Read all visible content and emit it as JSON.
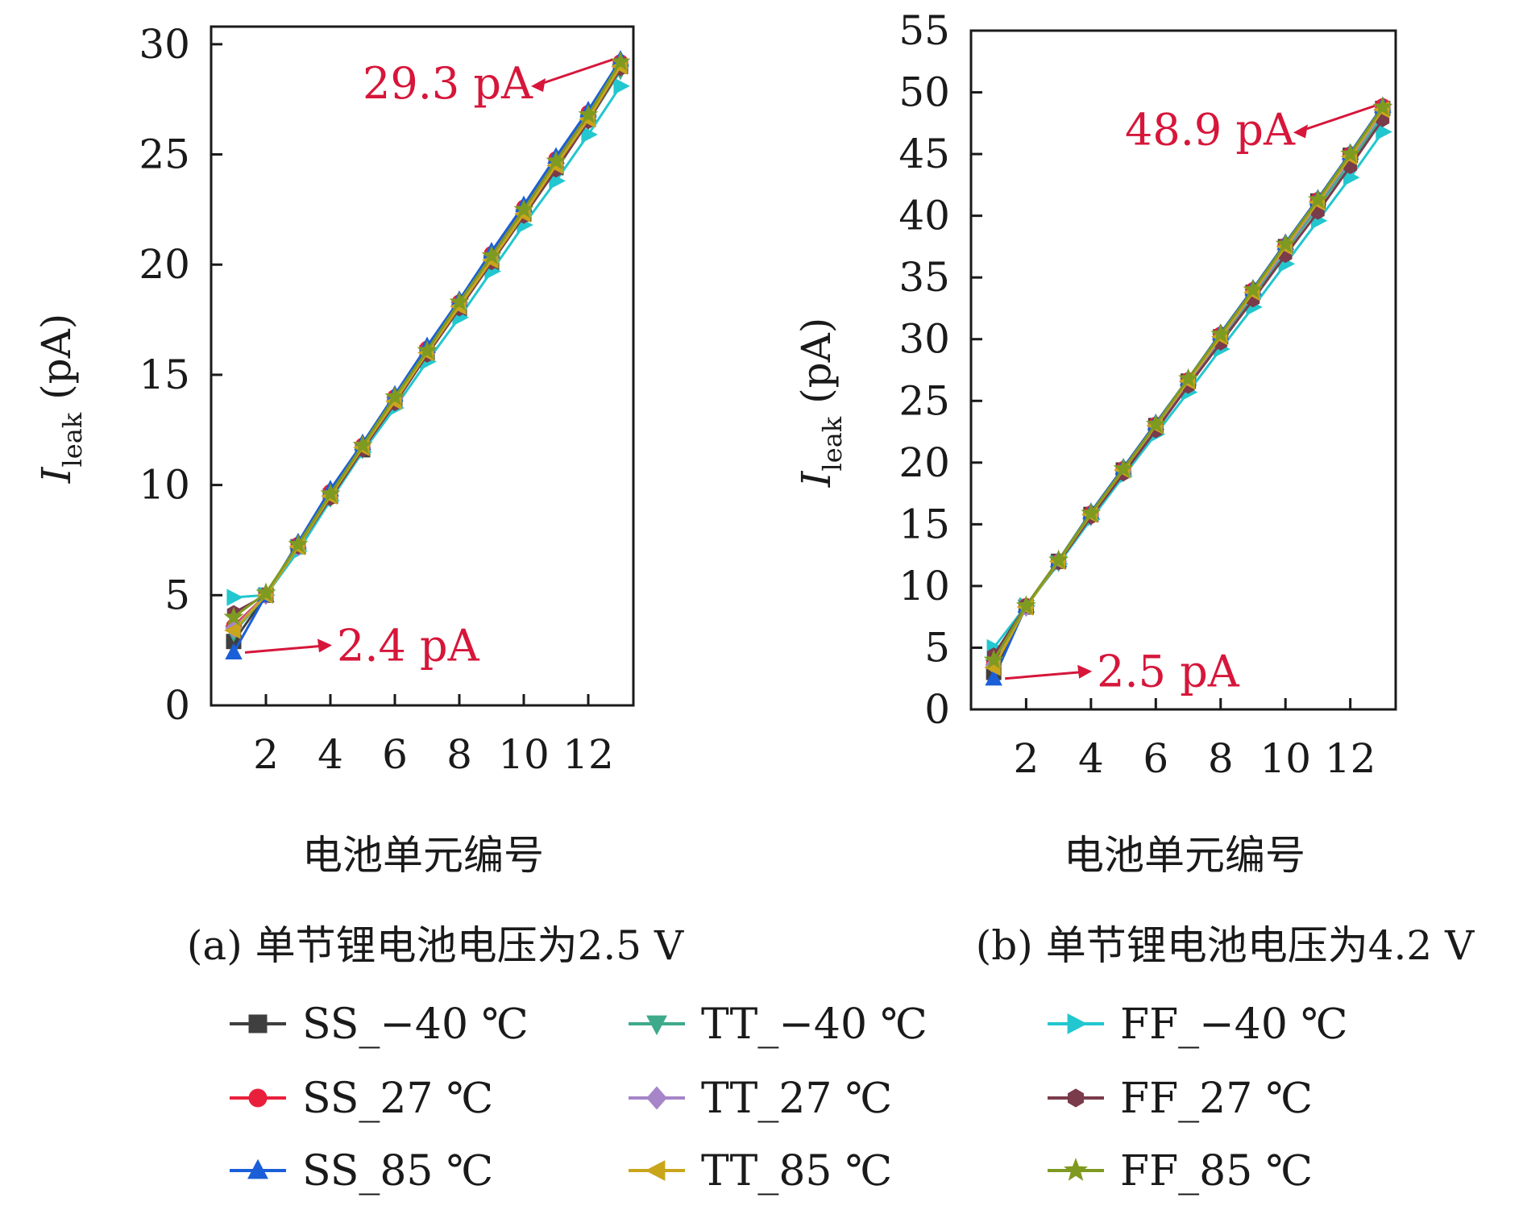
{
  "chart_data": [
    {
      "type": "line",
      "panel": "a",
      "caption": "(a) 单节锂电池电压为2.5 V",
      "xlabel": "电池单元编号",
      "ylabel_main": "I",
      "ylabel_sub": "leak",
      "ylabel_unit": " (pA)",
      "xlim": [
        0.3,
        13.4
      ],
      "ylim": [
        0,
        30.8
      ],
      "xticks": [
        2,
        4,
        6,
        8,
        10,
        12
      ],
      "yticks": [
        0,
        5,
        10,
        15,
        20,
        25,
        30
      ],
      "x": [
        1,
        2,
        3,
        4,
        5,
        6,
        7,
        8,
        9,
        10,
        11,
        12,
        13
      ],
      "series": [
        {
          "name": "SS_−40 ℃",
          "values": [
            2.9,
            5.0,
            7.2,
            9.5,
            11.6,
            13.8,
            16.0,
            18.0,
            20.1,
            22.3,
            24.4,
            26.6,
            29.0
          ]
        },
        {
          "name": "SS_27 ℃",
          "values": [
            3.3,
            5.0,
            7.2,
            9.4,
            11.6,
            13.7,
            15.9,
            18.0,
            20.1,
            22.2,
            24.3,
            26.5,
            28.8
          ]
        },
        {
          "name": "SS_85 ℃",
          "values": [
            4.9,
            5.0,
            7.0,
            9.3,
            11.5,
            13.5,
            15.6,
            17.6,
            19.7,
            21.8,
            23.8,
            25.9,
            28.1
          ]
        },
        {
          "name": "TT_−40 ℃",
          "values": [
            3.6,
            5.0,
            7.3,
            9.7,
            11.8,
            14.0,
            16.2,
            18.3,
            20.5,
            22.6,
            24.8,
            26.9,
            29.2
          ]
        },
        {
          "name": "TT_27 ℃",
          "values": [
            3.5,
            5.0,
            7.2,
            9.5,
            11.7,
            13.9,
            16.0,
            18.2,
            20.3,
            22.4,
            24.6,
            26.7,
            29.0
          ]
        },
        {
          "name": "TT_85 ℃",
          "values": [
            4.2,
            5.0,
            7.2,
            9.4,
            11.6,
            13.7,
            15.9,
            18.0,
            20.1,
            22.2,
            24.3,
            26.5,
            28.9
          ]
        },
        {
          "name": "FF_−40 ℃",
          "values": [
            2.4,
            5.0,
            7.4,
            9.8,
            11.9,
            14.1,
            16.3,
            18.4,
            20.6,
            22.7,
            24.9,
            27.0,
            29.3
          ]
        },
        {
          "name": "FF_27 ℃",
          "values": [
            3.4,
            5.0,
            7.2,
            9.5,
            11.7,
            13.8,
            16.0,
            18.1,
            20.2,
            22.3,
            24.5,
            26.6,
            29.0
          ]
        },
        {
          "name": "FF_85 ℃",
          "values": [
            4.0,
            5.1,
            7.3,
            9.6,
            11.8,
            14.0,
            16.1,
            18.3,
            20.4,
            22.5,
            24.7,
            26.8,
            29.2
          ]
        }
      ],
      "annotations": [
        {
          "text": "29.3 pA",
          "x": 13,
          "y": 29.3
        },
        {
          "text": "2.4 pA",
          "x": 1,
          "y": 2.4
        }
      ]
    },
    {
      "type": "line",
      "panel": "b",
      "caption": "(b) 单节锂电池电压为4.2 V",
      "xlabel": "电池单元编号",
      "ylabel_main": "I",
      "ylabel_sub": "leak",
      "ylabel_unit": " (pA)",
      "xlim": [
        0.3,
        13.4
      ],
      "ylim": [
        0,
        55
      ],
      "xticks": [
        2,
        4,
        6,
        8,
        10,
        12
      ],
      "yticks": [
        0,
        5,
        10,
        15,
        20,
        25,
        30,
        35,
        40,
        45,
        50,
        55
      ],
      "x": [
        1,
        2,
        3,
        4,
        5,
        6,
        7,
        8,
        9,
        10,
        11,
        12,
        13
      ],
      "series": [
        {
          "name": "SS_−40 ℃",
          "values": [
            3.0,
            8.3,
            12.0,
            15.8,
            19.4,
            23.0,
            26.6,
            30.2,
            33.8,
            37.5,
            41.2,
            44.9,
            48.7
          ]
        },
        {
          "name": "SS_27 ℃",
          "values": [
            3.5,
            8.3,
            11.9,
            15.6,
            19.2,
            22.8,
            26.3,
            29.9,
            33.5,
            37.1,
            40.7,
            44.3,
            48.1
          ]
        },
        {
          "name": "SS_85 ℃",
          "values": [
            5.0,
            8.4,
            11.8,
            15.4,
            18.9,
            22.3,
            25.7,
            29.2,
            32.6,
            36.1,
            39.6,
            43.1,
            46.8
          ]
        },
        {
          "name": "TT_−40 ℃",
          "values": [
            3.7,
            8.4,
            12.0,
            15.9,
            19.5,
            23.1,
            26.7,
            30.4,
            34.0,
            37.6,
            41.3,
            45.0,
            48.9
          ]
        },
        {
          "name": "TT_27 ℃",
          "values": [
            3.6,
            8.3,
            12.0,
            15.7,
            19.3,
            22.9,
            26.5,
            30.1,
            33.7,
            37.3,
            41.0,
            44.6,
            48.5
          ]
        },
        {
          "name": "TT_85 ℃",
          "values": [
            4.4,
            8.4,
            11.9,
            15.6,
            19.1,
            22.6,
            26.2,
            29.7,
            33.2,
            36.8,
            40.3,
            44.0,
            47.8
          ]
        },
        {
          "name": "FF_−40 ℃",
          "values": [
            2.5,
            8.4,
            12.1,
            16.0,
            19.6,
            23.2,
            26.8,
            30.5,
            34.1,
            37.8,
            41.4,
            45.1,
            48.9
          ]
        },
        {
          "name": "FF_27 ℃",
          "values": [
            3.4,
            8.3,
            12.0,
            15.8,
            19.4,
            23.0,
            26.6,
            30.2,
            33.8,
            37.5,
            41.1,
            44.8,
            48.6
          ]
        },
        {
          "name": "FF_85 ℃",
          "values": [
            4.0,
            8.4,
            12.1,
            15.9,
            19.5,
            23.1,
            26.8,
            30.4,
            34.0,
            37.7,
            41.3,
            45.0,
            48.8
          ]
        }
      ],
      "annotations": [
        {
          "text": "48.9 pA",
          "x": 13,
          "y": 48.9
        },
        {
          "text": "2.5 pA",
          "x": 1,
          "y": 2.5
        }
      ]
    }
  ],
  "legend": [
    {
      "label": "SS_−40 ℃",
      "color": "#3f3f3f",
      "marker": "square"
    },
    {
      "label": "TT_−40 ℃",
      "color": "#3eaa8c",
      "marker": "triangle-down"
    },
    {
      "label": "FF_−40 ℃",
      "color": "#22c7cf",
      "marker": "triangle-right"
    },
    {
      "label": "SS_27 ℃",
      "color": "#e8203c",
      "marker": "circle"
    },
    {
      "label": "TT_27 ℃",
      "color": "#a685c8",
      "marker": "diamond"
    },
    {
      "label": "FF_27 ℃",
      "color": "#7a3b4b",
      "marker": "hexagon"
    },
    {
      "label": "SS_85 ℃",
      "color": "#1a5fd8",
      "marker": "triangle-up"
    },
    {
      "label": "TT_85 ℃",
      "color": "#c9a51c",
      "marker": "triangle-left"
    },
    {
      "label": "FF_85 ℃",
      "color": "#7f9a21",
      "marker": "star"
    }
  ],
  "colors": {
    "annotation": "#d6163a",
    "axis": "#1a1a1a"
  }
}
